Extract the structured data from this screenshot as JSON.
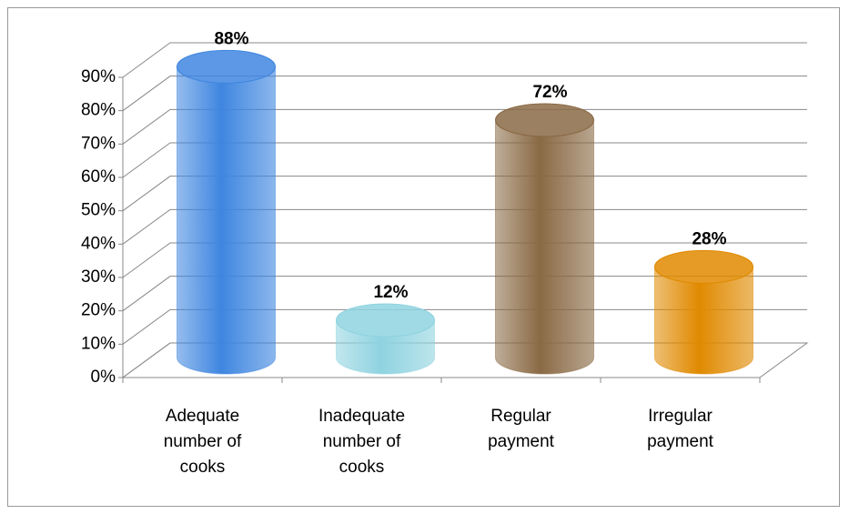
{
  "chart_data": {
    "type": "bar3d",
    "categories": [
      "Adequate number of cooks",
      "Inadequate number of cooks",
      "Regular payment",
      "Irregular payment"
    ],
    "values": [
      88,
      12,
      72,
      28
    ],
    "value_labels": [
      "88%",
      "12%",
      "72%",
      "28%"
    ],
    "colors": [
      "#3f86e0",
      "#8fd3e0",
      "#8a6a45",
      "#e08a00"
    ],
    "ylim": [
      0,
      90
    ],
    "yticks": [
      {
        "value": 0,
        "label": "0%"
      },
      {
        "value": 10,
        "label": "10%"
      },
      {
        "value": 20,
        "label": "20%"
      },
      {
        "value": 30,
        "label": "30%"
      },
      {
        "value": 40,
        "label": "40%"
      },
      {
        "value": 50,
        "label": "50%"
      },
      {
        "value": 60,
        "label": "60%"
      },
      {
        "value": 70,
        "label": "70%"
      },
      {
        "value": 80,
        "label": "80%"
      },
      {
        "value": 90,
        "label": "90%"
      }
    ],
    "grid": true
  }
}
